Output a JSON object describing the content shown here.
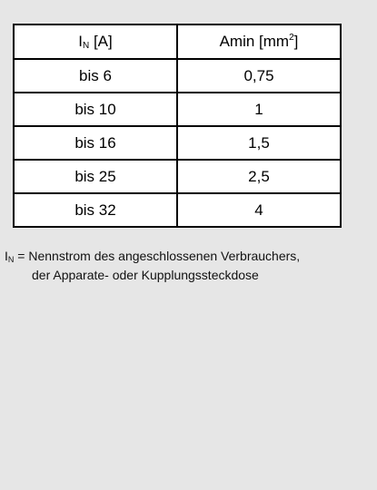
{
  "table": {
    "headers": {
      "col1": {
        "main": "I",
        "sub": "N",
        "unit": " [A]"
      },
      "col2": {
        "main": "Amin  [mm",
        "sup": "2",
        "close": "]"
      }
    },
    "rows": [
      {
        "current": "bis 6",
        "area": "0,75"
      },
      {
        "current": "bis 10",
        "area": "1"
      },
      {
        "current": "bis 16",
        "area": "1,5"
      },
      {
        "current": "bis 25",
        "area": "2,5"
      },
      {
        "current": "bis 32",
        "area": "4"
      }
    ]
  },
  "note": {
    "symbol": "I",
    "symbol_sub": "N",
    "line1": " = Nennstrom des angeschlossenen Verbrauchers,",
    "line2": "der Apparate- oder Kupplungssteckdose"
  }
}
